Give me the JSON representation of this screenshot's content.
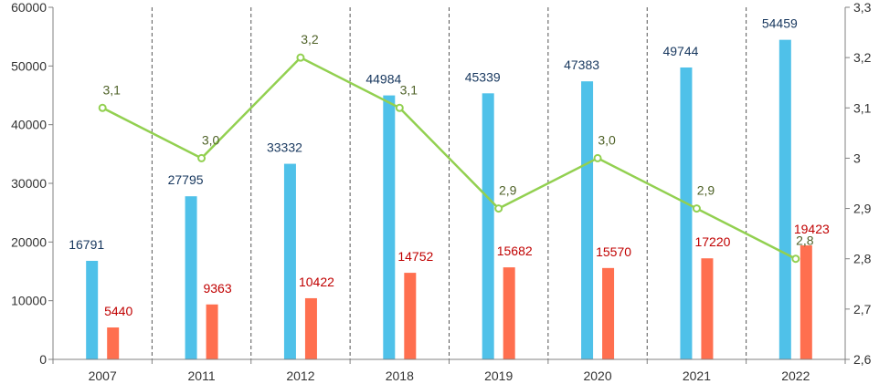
{
  "colors": {
    "series1": "#4fc1e9",
    "series2": "#ff6f4f",
    "line": "#92d050",
    "series1_label": "#17375e",
    "series2_label": "#c00000",
    "line_label": "#4f6228",
    "axis": "#808080",
    "divider": "#555555"
  },
  "chart_data": {
    "type": "bar",
    "categories": [
      "2007",
      "2011",
      "2012",
      "2018",
      "2019",
      "2020",
      "2021",
      "2022"
    ],
    "series": [
      {
        "values": [
          16791,
          27795,
          33332,
          44984,
          45339,
          47383,
          49744,
          54459
        ],
        "axis": "left",
        "kind": "bar"
      },
      {
        "values": [
          5440,
          9363,
          10422,
          14752,
          15682,
          15570,
          17220,
          19423
        ],
        "axis": "left",
        "kind": "bar"
      },
      {
        "values": [
          3.1,
          3.0,
          3.2,
          3.1,
          2.9,
          3.0,
          2.9,
          2.8
        ],
        "axis": "right",
        "kind": "line"
      }
    ],
    "series_data_labels": [
      [
        "16791",
        "27795",
        "33332",
        "44984",
        "45339",
        "47383",
        "49744",
        "54459"
      ],
      [
        "5440",
        "9363",
        "10422",
        "14752",
        "15682",
        "15570",
        "17220",
        "19423"
      ],
      [
        "3,1",
        "3,0",
        "3,2",
        "3,1",
        "2,9",
        "3,0",
        "2,9",
        "2,8"
      ]
    ],
    "ylim": [
      0,
      60000
    ],
    "y_ticks": [
      "0",
      "10000",
      "20000",
      "30000",
      "40000",
      "50000",
      "60000"
    ],
    "y2lim": [
      2.6,
      3.3
    ],
    "y2_ticks": [
      "2,6",
      "2,7",
      "2,8",
      "2,9",
      "3",
      "3,1",
      "3,2",
      "3,3"
    ],
    "title": "",
    "xlabel": "",
    "ylabel": "",
    "y2label": "",
    "grid": false,
    "category_dividers": "dashed",
    "legend": "none"
  }
}
